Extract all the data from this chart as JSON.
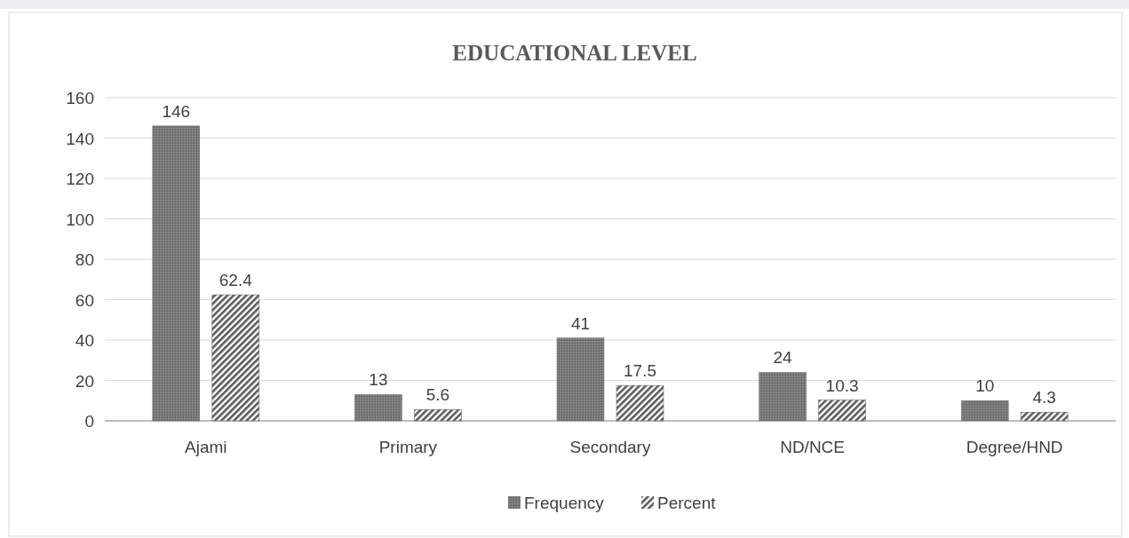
{
  "chart_data": {
    "type": "bar",
    "title": "EDUCATIONAL LEVEL",
    "categories": [
      "Ajami",
      "Primary",
      "Secondary",
      "ND/NCE",
      "Degree/HND"
    ],
    "series": [
      {
        "name": "Frequency",
        "color": "#6e6e6e",
        "values": [
          146,
          13,
          41,
          24,
          10
        ]
      },
      {
        "name": "Percent",
        "color": "#5a5a5a",
        "values": [
          62.4,
          5.6,
          17.5,
          10.3,
          4.3
        ]
      }
    ],
    "ylim": [
      0,
      160
    ],
    "yticks": [
      0,
      20,
      40,
      60,
      80,
      100,
      120,
      140,
      160
    ],
    "grid": "y",
    "legend": "bottom",
    "data_labels": true
  }
}
